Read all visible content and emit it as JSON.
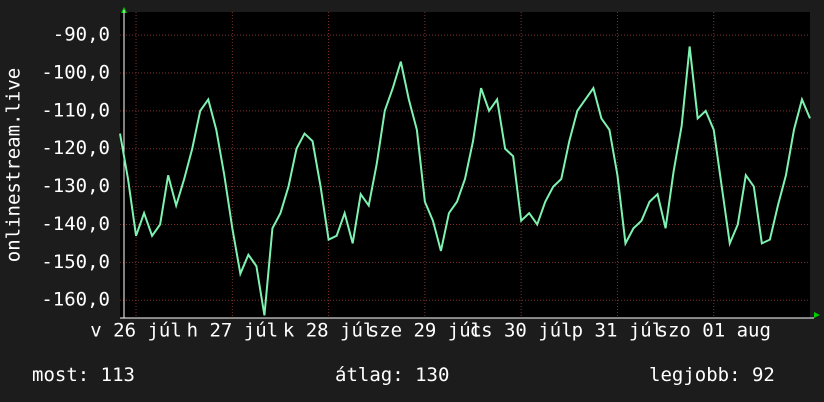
{
  "chart_data": {
    "type": "line",
    "ylabel": "onlinestream.live",
    "xlim": [
      0,
      86
    ],
    "xticks": [
      {
        "value": 2,
        "label": "v 26 júl"
      },
      {
        "value": 14,
        "label": "h 27 júl"
      },
      {
        "value": 26,
        "label": "k 28 júl"
      },
      {
        "value": 38,
        "label": "sze 29 júl"
      },
      {
        "value": 50,
        "label": "cs 30 júl"
      },
      {
        "value": 62,
        "label": "p 31 júl"
      },
      {
        "value": 74,
        "label": "szo 01 aug"
      }
    ],
    "ylim": [
      -164.7,
      -83.9
    ],
    "yticks": [
      {
        "value": -90,
        "label": "-90,0"
      },
      {
        "value": -100,
        "label": "-100,0"
      },
      {
        "value": -110,
        "label": "-110,0"
      },
      {
        "value": -120,
        "label": "-120,0"
      },
      {
        "value": -130,
        "label": "-130,0"
      },
      {
        "value": -140,
        "label": "-140,0"
      },
      {
        "value": -150,
        "label": "-150,0"
      },
      {
        "value": -160,
        "label": "-160,0"
      }
    ],
    "grid": true,
    "series": [
      {
        "color": "#7ef2b0",
        "values": [
          -116,
          -128,
          -143,
          -137,
          -143,
          -140,
          -127,
          -135,
          -128,
          -120,
          -110,
          -107,
          -115,
          -127,
          -141,
          -153,
          -148,
          -151,
          -164,
          -141,
          -137,
          -130,
          -120,
          -116,
          -118,
          -130,
          -144,
          -143,
          -137,
          -145,
          -132,
          -135,
          -124,
          -110,
          -104,
          -97,
          -107,
          -115,
          -134,
          -139,
          -147,
          -137,
          -134,
          -128,
          -118,
          -104,
          -110,
          -107,
          -120,
          -122,
          -139,
          -137,
          -140,
          -134,
          -130,
          -128,
          -118,
          -110,
          -107,
          -104,
          -112,
          -115,
          -127,
          -145,
          -141,
          -139,
          -134,
          -132,
          -141,
          -126,
          -114,
          -93,
          -112,
          -110,
          -115,
          -130,
          -145,
          -140,
          -127,
          -130,
          -145,
          -144,
          -135,
          -127,
          -115,
          -107,
          -112
        ]
      }
    ]
  },
  "footer": [
    {
      "label": "most:",
      "value": 113
    },
    {
      "label": "átlag:",
      "value": 130
    },
    {
      "label": "legjobb:",
      "value": 92
    }
  ]
}
